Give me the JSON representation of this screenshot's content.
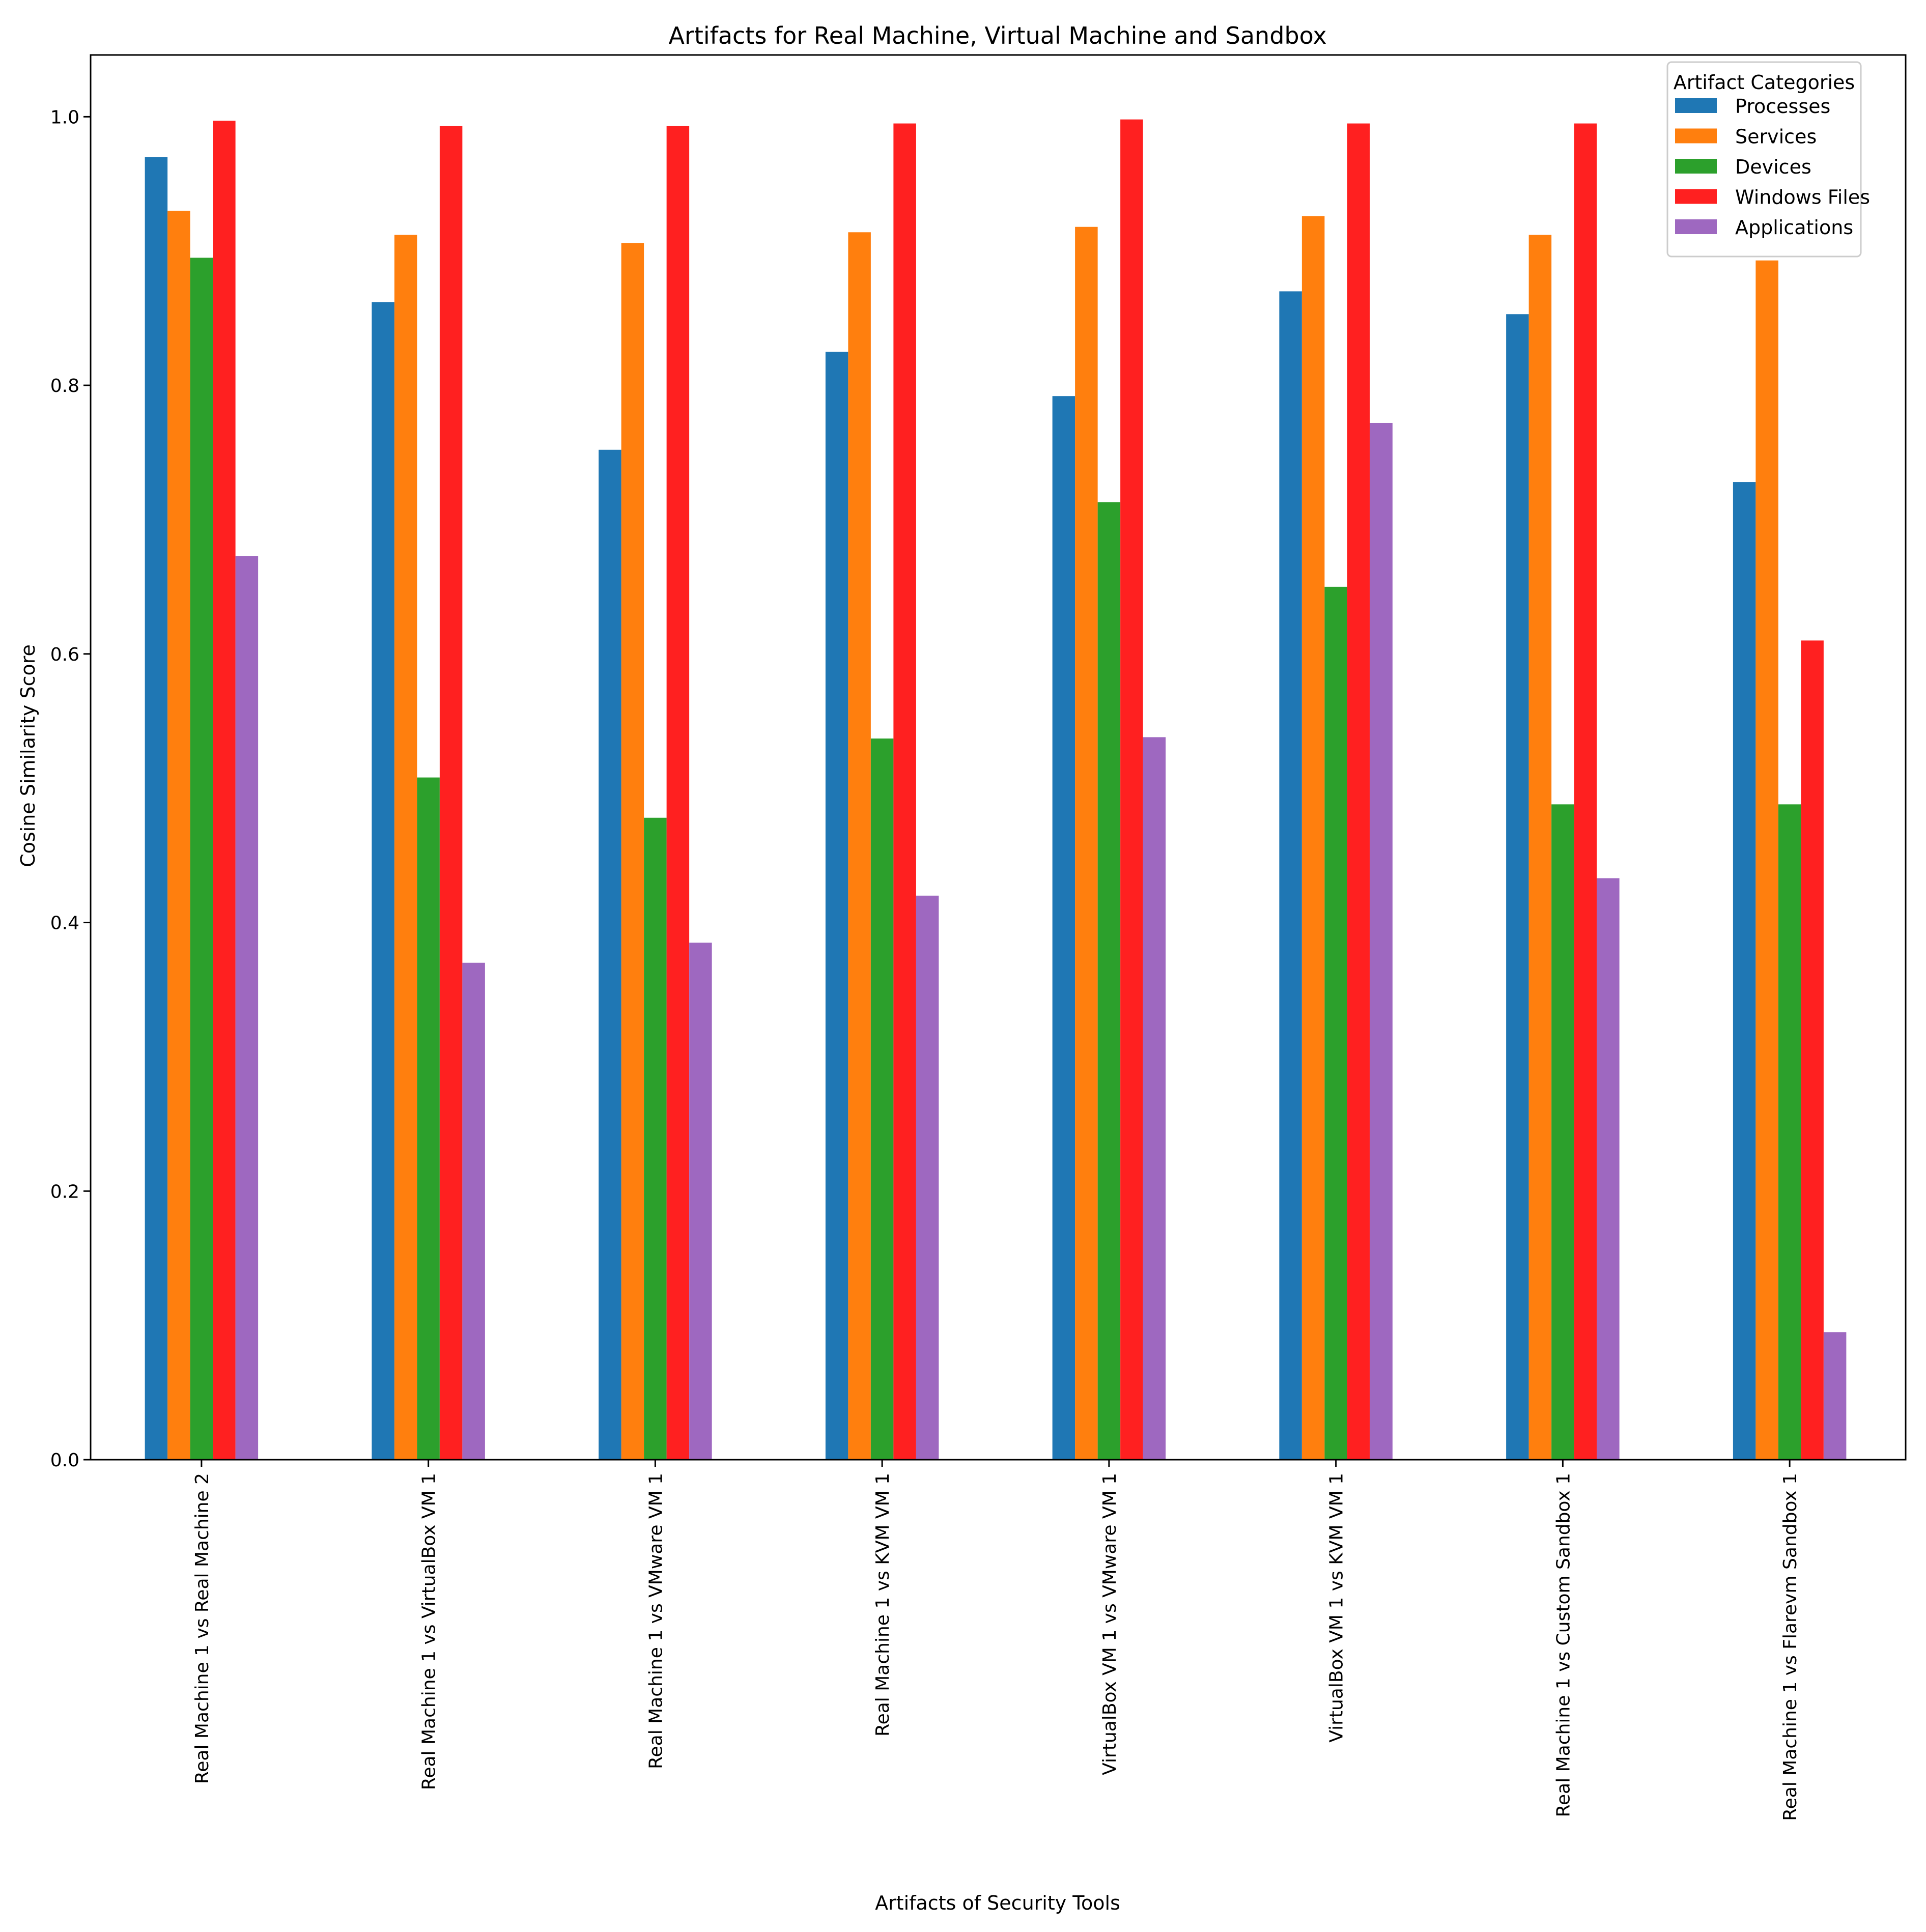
{
  "chart_data": {
    "type": "bar",
    "title": "Artifacts for Real Machine, Virtual Machine and Sandbox",
    "xlabel": "Artifacts of Security Tools",
    "ylabel": "Cosine Similarity Score",
    "ylim": [
      0,
      1.046
    ],
    "yticks": [
      "0.0",
      "0.2",
      "0.4",
      "0.6",
      "0.8",
      "1.0"
    ],
    "legend_title": "Artifact Categories",
    "legend_position": "top-right",
    "categories": [
      "Real Machine 1 vs Real Machine 2",
      "Real Machine 1 vs VirtualBox VM 1",
      "Real Machine 1 vs VMware VM 1",
      "Real Machine 1 vs KVM VM 1",
      "VirtualBox VM 1 vs VMware VM 1",
      "VirtualBox VM 1 vs KVM VM 1",
      "Real Machine 1 vs Custom Sandbox 1",
      "Real Machine 1 vs Flarevm Sandbox 1"
    ],
    "series": [
      {
        "name": "Processes",
        "color": "#1f77b4",
        "values": [
          0.97,
          0.862,
          0.752,
          0.825,
          0.792,
          0.87,
          0.853,
          0.728
        ]
      },
      {
        "name": "Services",
        "color": "#ff7f0e",
        "values": [
          0.93,
          0.912,
          0.906,
          0.914,
          0.918,
          0.926,
          0.912,
          0.893
        ]
      },
      {
        "name": "Devices",
        "color": "#2ca02c",
        "values": [
          0.895,
          0.508,
          0.478,
          0.537,
          0.713,
          0.65,
          0.488,
          0.488
        ]
      },
      {
        "name": "Windows Files",
        "color": "#ff2020",
        "values": [
          0.997,
          0.993,
          0.993,
          0.995,
          0.998,
          0.995,
          0.995,
          0.61
        ]
      },
      {
        "name": "Applications",
        "color": "#9e68c0",
        "values": [
          0.673,
          0.37,
          0.385,
          0.42,
          0.538,
          0.772,
          0.433,
          0.095
        ]
      }
    ]
  }
}
